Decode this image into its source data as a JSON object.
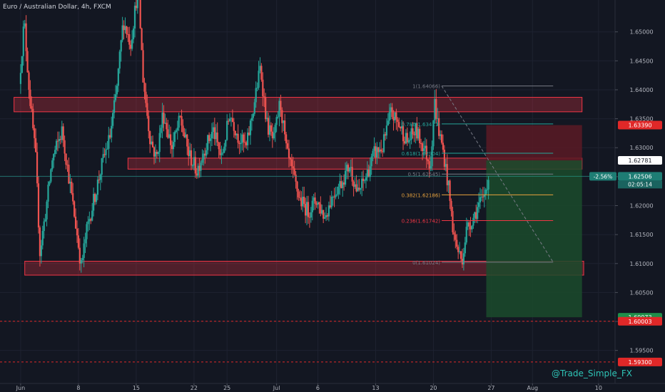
{
  "header": {
    "symbol_title": "Euro / Australian Dollar, 4h, FXCM"
  },
  "watermark": "@Trade_Simple_FX",
  "colors": {
    "background": "#131722",
    "grid": "#1e2230",
    "axis_text": "#b2b5be",
    "up_candle": "#26a69a",
    "down_candle": "#ef5350",
    "zone_fill": "#f23645",
    "stop_zone": "#5b1a24",
    "target_zone": "#1b4b2c",
    "fib_gray": "#787b86",
    "fib_teal": "#26a69a",
    "fib_orange": "#e8a33d",
    "fib_red": "#f23645",
    "price_label_red": "#e02828",
    "price_label_green": "#1f8f4a",
    "price_label_teal": "#1e7d74",
    "watermark_text": "#2ec4b6"
  },
  "chart_data": {
    "type": "candlestick",
    "title": "Euro / Australian Dollar, 4h, FXCM",
    "x_ticks": [
      "Jun",
      "8",
      "15",
      "22",
      "25",
      "Jul",
      "6",
      "13",
      "20",
      "27",
      "Aug",
      "10"
    ],
    "x_tick_days": [
      1,
      8,
      15,
      22,
      26,
      32,
      37,
      44,
      51,
      58,
      63,
      71
    ],
    "x_range_days": [
      -1.5,
      73
    ],
    "y_ticks": [
      "1.65000",
      "1.64500",
      "1.64000",
      "1.63500",
      "1.63000",
      "1.62500",
      "1.62000",
      "1.61500",
      "1.61000",
      "1.60500",
      "1.60000",
      "1.59500"
    ],
    "y_tick_values": [
      1.65,
      1.645,
      1.64,
      1.635,
      1.63,
      1.625,
      1.62,
      1.615,
      1.61,
      1.605,
      1.6,
      1.595
    ],
    "y_range": [
      1.5893,
      1.6555
    ],
    "grid": true,
    "price_path": [
      [
        1.0,
        1.641
      ],
      [
        1.6,
        1.652
      ],
      [
        2.2,
        1.64
      ],
      [
        3.0,
        1.628
      ],
      [
        3.5,
        1.612
      ],
      [
        4.2,
        1.619
      ],
      [
        5.0,
        1.628
      ],
      [
        6.2,
        1.633
      ],
      [
        7.5,
        1.62
      ],
      [
        8.0,
        1.615
      ],
      [
        8.5,
        1.6095
      ],
      [
        9.2,
        1.616
      ],
      [
        10.2,
        1.622
      ],
      [
        11.0,
        1.627
      ],
      [
        12.0,
        1.632
      ],
      [
        12.8,
        1.64
      ],
      [
        13.6,
        1.652
      ],
      [
        14.5,
        1.648
      ],
      [
        15.4,
        1.658
      ],
      [
        16.0,
        1.642
      ],
      [
        16.8,
        1.632
      ],
      [
        17.6,
        1.628
      ],
      [
        18.4,
        1.636
      ],
      [
        19.5,
        1.63
      ],
      [
        20.5,
        1.635
      ],
      [
        21.5,
        1.629
      ],
      [
        22.5,
        1.626
      ],
      [
        23.5,
        1.63
      ],
      [
        24.5,
        1.633
      ],
      [
        25.5,
        1.628
      ],
      [
        26.5,
        1.636
      ],
      [
        27.5,
        1.632
      ],
      [
        28.5,
        1.63
      ],
      [
        29.5,
        1.638
      ],
      [
        30.2,
        1.644
      ],
      [
        31.0,
        1.634
      ],
      [
        31.8,
        1.631
      ],
      [
        32.6,
        1.638
      ],
      [
        33.4,
        1.629
      ],
      [
        34.2,
        1.625
      ],
      [
        35.0,
        1.621
      ],
      [
        36.0,
        1.619
      ],
      [
        37.0,
        1.621
      ],
      [
        38.0,
        1.618
      ],
      [
        39.0,
        1.622
      ],
      [
        40.0,
        1.624
      ],
      [
        41.0,
        1.627
      ],
      [
        42.0,
        1.622
      ],
      [
        43.0,
        1.625
      ],
      [
        44.0,
        1.629
      ],
      [
        45.0,
        1.63
      ],
      [
        46.0,
        1.636
      ],
      [
        47.0,
        1.634
      ],
      [
        48.0,
        1.631
      ],
      [
        49.0,
        1.633
      ],
      [
        50.0,
        1.63
      ],
      [
        50.8,
        1.627
      ],
      [
        51.3,
        1.638
      ],
      [
        51.8,
        1.633
      ],
      [
        52.4,
        1.629
      ],
      [
        53.0,
        1.623
      ],
      [
        53.6,
        1.615
      ],
      [
        54.2,
        1.612
      ],
      [
        54.6,
        1.6105
      ],
      [
        55.2,
        1.616
      ],
      [
        56.0,
        1.618
      ],
      [
        56.6,
        1.62
      ],
      [
        57.2,
        1.621
      ],
      [
        57.8,
        1.625
      ]
    ],
    "horizontal_zones": [
      {
        "x1": 0.2,
        "x2": 69.0,
        "top": 1.6387,
        "bottom": 1.6362
      },
      {
        "x1": 14.0,
        "x2": 69.0,
        "top": 1.6282,
        "bottom": 1.6263
      },
      {
        "x1": 1.5,
        "x2": 69.2,
        "top": 1.6104,
        "bottom": 1.608
      }
    ],
    "fibonacci": {
      "x1": 52.0,
      "x2": 65.5,
      "levels": [
        {
          "label": "1(1.64066)",
          "value": 1.64066,
          "color": "gray"
        },
        {
          "label": "0.786(1.63411)",
          "value": 1.63411,
          "color": "teal"
        },
        {
          "label": "0.618(1.62904)",
          "value": 1.62904,
          "color": "teal"
        },
        {
          "label": "0.5(1.62545)",
          "value": 1.62545,
          "color": "gray"
        },
        {
          "label": "0.382(1.62186)",
          "value": 1.62186,
          "color": "orange"
        },
        {
          "label": "0.236(1.61742)",
          "value": 1.61742,
          "color": "red"
        },
        {
          "label": "0(1.61024)",
          "value": 1.61024,
          "color": "gray"
        }
      ]
    },
    "trend_line": {
      "x1": 52.0,
      "y1": 1.64066,
      "x2": 65.5,
      "y2": 1.61024
    },
    "position": {
      "x1": 57.4,
      "x2": 69.0,
      "stop_top": 1.6339,
      "entry": 1.62781,
      "target": 1.60073
    },
    "current_price": 1.62506,
    "price_labels": [
      {
        "text": "1.63390",
        "value": 1.6339,
        "style": "red"
      },
      {
        "text": "1.62781",
        "value": 1.62781,
        "style": "white"
      },
      {
        "text": "1.62506",
        "value": 1.62506,
        "style": "teal"
      },
      {
        "text": "1.60073",
        "value": 1.60073,
        "style": "green"
      },
      {
        "text": "1.60003",
        "value": 1.60003,
        "style": "red"
      },
      {
        "text": "1.59300",
        "value": 1.593,
        "style": "red"
      }
    ],
    "price_change": "-2.56%",
    "countdown": "02:05:14",
    "dashed_levels": [
      1.60003,
      1.593
    ]
  }
}
